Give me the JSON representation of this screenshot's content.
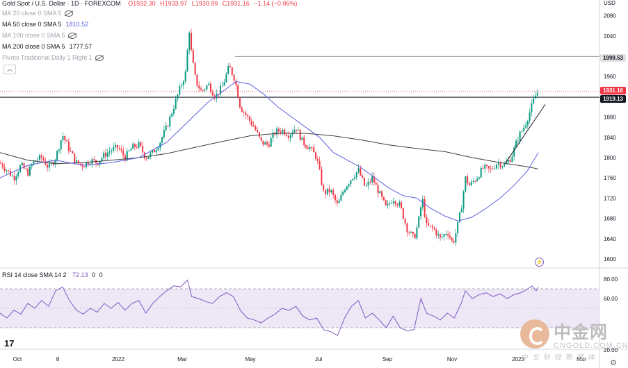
{
  "header": {
    "symbol": "Gold Spot / U.S. Dollar · 1D · FOREXCOM",
    "open": "O1932.30",
    "high": "H1933.97",
    "low": "L1930.99",
    "close": "C1931.16",
    "change": "−1.14 (−0.06%)",
    "currency": "USD"
  },
  "indicators": [
    {
      "label": "MA 20 close 0 SMA 5",
      "value": "",
      "icon": "eye-off-icon"
    },
    {
      "label": "MA 50 close 0 SMA 5",
      "value": "1810.52",
      "icon": ""
    },
    {
      "label": "MA 100 close 0 SMA 5",
      "value": "",
      "icon": "eye-off-icon"
    },
    {
      "label": "MA 200 close 0 SMA 5",
      "value": "1777.57",
      "icon": ""
    },
    {
      "label": "Pivots Traditional Daily 1 Right 1",
      "value": "",
      "icon": "eye-off-icon"
    }
  ],
  "collapse_icon": "chevron-up-icon",
  "price_labels": {
    "level_upper": "1999.53",
    "current": "1931.16",
    "level_lower": "1919.13"
  },
  "rsi": {
    "label": "RSI 14 close SMA 14 2",
    "value": "72.13",
    "v2": "0",
    "v3": "0"
  },
  "watermark": {
    "brand": "中金网",
    "url": "CNGOLD.COM.CN",
    "slogan": "中文财经新媒体"
  },
  "logo": "17",
  "colors": {
    "up": "#089981",
    "down": "#f23645",
    "ma50": "#5b5fe0",
    "ma200": "#3c3c3c",
    "rsi": "#7e57c2",
    "rsi_band": "#ede7f6"
  },
  "chart_data": [
    {
      "type": "candlestick",
      "title": "Gold Spot / U.S. Dollar · 1D · FOREXCOM",
      "x_ticks": [
        "Oct",
        "8",
        "2022",
        "Mar",
        "May",
        "Jul",
        "Sep",
        "Nov",
        "2023",
        "Mar"
      ],
      "y_ticks": [
        2080,
        2040,
        2000,
        1960,
        1920,
        1880,
        1840,
        1800,
        1760,
        1720,
        1680,
        1640,
        1600
      ],
      "ylim": [
        1585,
        2100
      ],
      "close_path": [
        [
          0,
          1790
        ],
        [
          10,
          1775
        ],
        [
          20,
          1760
        ],
        [
          30,
          1785
        ],
        [
          40,
          1770
        ],
        [
          50,
          1795
        ],
        [
          60,
          1800
        ],
        [
          70,
          1780
        ],
        [
          80,
          1800
        ],
        [
          90,
          1845
        ],
        [
          100,
          1815
        ],
        [
          110,
          1790
        ],
        [
          120,
          1785
        ],
        [
          130,
          1795
        ],
        [
          140,
          1790
        ],
        [
          150,
          1805
        ],
        [
          160,
          1815
        ],
        [
          170,
          1820
        ],
        [
          180,
          1800
        ],
        [
          190,
          1820
        ],
        [
          200,
          1825
        ],
        [
          210,
          1800
        ],
        [
          220,
          1810
        ],
        [
          230,
          1830
        ],
        [
          240,
          1860
        ],
        [
          250,
          1900
        ],
        [
          260,
          1940
        ],
        [
          268,
          1970
        ],
        [
          272,
          2060
        ],
        [
          276,
          2000
        ],
        [
          282,
          1950
        ],
        [
          290,
          1930
        ],
        [
          300,
          1945
        ],
        [
          310,
          1920
        ],
        [
          320,
          1940
        ],
        [
          330,
          1980
        ],
        [
          338,
          1955
        ],
        [
          346,
          1900
        ],
        [
          356,
          1880
        ],
        [
          366,
          1860
        ],
        [
          376,
          1830
        ],
        [
          386,
          1825
        ],
        [
          396,
          1850
        ],
        [
          406,
          1855
        ],
        [
          416,
          1845
        ],
        [
          426,
          1860
        ],
        [
          436,
          1830
        ],
        [
          446,
          1820
        ],
        [
          456,
          1800
        ],
        [
          466,
          1730
        ],
        [
          476,
          1735
        ],
        [
          486,
          1705
        ],
        [
          496,
          1740
        ],
        [
          506,
          1760
        ],
        [
          516,
          1775
        ],
        [
          526,
          1740
        ],
        [
          536,
          1760
        ],
        [
          546,
          1730
        ],
        [
          556,
          1700
        ],
        [
          566,
          1720
        ],
        [
          576,
          1705
        ],
        [
          586,
          1660
        ],
        [
          596,
          1640
        ],
        [
          602,
          1670
        ],
        [
          608,
          1720
        ],
        [
          614,
          1665
        ],
        [
          624,
          1660
        ],
        [
          634,
          1640
        ],
        [
          644,
          1655
        ],
        [
          652,
          1630
        ],
        [
          658,
          1660
        ],
        [
          664,
          1700
        ],
        [
          670,
          1760
        ],
        [
          676,
          1745
        ],
        [
          686,
          1760
        ],
        [
          696,
          1780
        ],
        [
          706,
          1775
        ],
        [
          716,
          1790
        ],
        [
          726,
          1785
        ],
        [
          736,
          1800
        ],
        [
          746,
          1840
        ],
        [
          756,
          1865
        ],
        [
          764,
          1895
        ],
        [
          770,
          1920
        ],
        [
          775,
          1931
        ]
      ],
      "ma50": [
        [
          0,
          1760
        ],
        [
          40,
          1785
        ],
        [
          80,
          1795
        ],
        [
          120,
          1785
        ],
        [
          160,
          1790
        ],
        [
          200,
          1800
        ],
        [
          240,
          1830
        ],
        [
          270,
          1870
        ],
        [
          300,
          1910
        ],
        [
          320,
          1930
        ],
        [
          340,
          1950
        ],
        [
          360,
          1945
        ],
        [
          380,
          1925
        ],
        [
          400,
          1900
        ],
        [
          420,
          1880
        ],
        [
          440,
          1860
        ],
        [
          460,
          1840
        ],
        [
          480,
          1810
        ],
        [
          500,
          1795
        ],
        [
          520,
          1780
        ],
        [
          540,
          1760
        ],
        [
          560,
          1740
        ],
        [
          580,
          1725
        ],
        [
          600,
          1720
        ],
        [
          620,
          1700
        ],
        [
          640,
          1685
        ],
        [
          660,
          1675
        ],
        [
          680,
          1683
        ],
        [
          700,
          1700
        ],
        [
          720,
          1720
        ],
        [
          740,
          1745
        ],
        [
          760,
          1775
        ],
        [
          775,
          1810
        ]
      ],
      "ma200": [
        [
          0,
          1810
        ],
        [
          40,
          1795
        ],
        [
          80,
          1788
        ],
        [
          120,
          1790
        ],
        [
          160,
          1795
        ],
        [
          200,
          1800
        ],
        [
          240,
          1808
        ],
        [
          280,
          1820
        ],
        [
          320,
          1832
        ],
        [
          360,
          1843
        ],
        [
          400,
          1848
        ],
        [
          440,
          1848
        ],
        [
          480,
          1843
        ],
        [
          520,
          1835
        ],
        [
          560,
          1825
        ],
        [
          600,
          1818
        ],
        [
          640,
          1812
        ],
        [
          680,
          1800
        ],
        [
          720,
          1790
        ],
        [
          760,
          1782
        ],
        [
          775,
          1777.57
        ]
      ],
      "trendline": [
        [
          728,
          1790
        ],
        [
          785,
          1905
        ]
      ],
      "hlines": [
        {
          "y": 1999.53
        },
        {
          "y": 1919.13
        },
        {
          "y": 1931.16
        }
      ]
    },
    {
      "type": "line",
      "title": "RSI 14 close SMA 14 2",
      "y_ticks": [
        80,
        60,
        20
      ],
      "ylim": [
        10,
        90
      ],
      "band": [
        30,
        70
      ],
      "values": [
        [
          0,
          45
        ],
        [
          10,
          40
        ],
        [
          20,
          48
        ],
        [
          30,
          44
        ],
        [
          40,
          55
        ],
        [
          50,
          50
        ],
        [
          60,
          58
        ],
        [
          70,
          52
        ],
        [
          80,
          68
        ],
        [
          90,
          72
        ],
        [
          100,
          58
        ],
        [
          110,
          48
        ],
        [
          120,
          44
        ],
        [
          130,
          50
        ],
        [
          140,
          46
        ],
        [
          150,
          55
        ],
        [
          160,
          50
        ],
        [
          170,
          56
        ],
        [
          180,
          48
        ],
        [
          190,
          55
        ],
        [
          200,
          58
        ],
        [
          210,
          45
        ],
        [
          220,
          55
        ],
        [
          230,
          62
        ],
        [
          240,
          68
        ],
        [
          250,
          73
        ],
        [
          260,
          72
        ],
        [
          270,
          79
        ],
        [
          276,
          62
        ],
        [
          286,
          60
        ],
        [
          296,
          57
        ],
        [
          306,
          55
        ],
        [
          316,
          62
        ],
        [
          326,
          66
        ],
        [
          336,
          62
        ],
        [
          346,
          48
        ],
        [
          356,
          40
        ],
        [
          366,
          38
        ],
        [
          376,
          35
        ],
        [
          386,
          40
        ],
        [
          396,
          44
        ],
        [
          406,
          50
        ],
        [
          416,
          48
        ],
        [
          426,
          52
        ],
        [
          436,
          42
        ],
        [
          446,
          38
        ],
        [
          456,
          40
        ],
        [
          466,
          28
        ],
        [
          476,
          26
        ],
        [
          486,
          22
        ],
        [
          496,
          40
        ],
        [
          506,
          52
        ],
        [
          516,
          58
        ],
        [
          526,
          40
        ],
        [
          536,
          45
        ],
        [
          546,
          38
        ],
        [
          556,
          30
        ],
        [
          566,
          42
        ],
        [
          576,
          30
        ],
        [
          586,
          27
        ],
        [
          596,
          28
        ],
        [
          606,
          60
        ],
        [
          614,
          45
        ],
        [
          624,
          42
        ],
        [
          634,
          38
        ],
        [
          644,
          45
        ],
        [
          654,
          40
        ],
        [
          664,
          55
        ],
        [
          670,
          68
        ],
        [
          680,
          60
        ],
        [
          690,
          64
        ],
        [
          700,
          66
        ],
        [
          710,
          62
        ],
        [
          720,
          65
        ],
        [
          730,
          60
        ],
        [
          740,
          64
        ],
        [
          750,
          66
        ],
        [
          760,
          70
        ],
        [
          766,
          73
        ],
        [
          772,
          68
        ],
        [
          775,
          72
        ]
      ]
    }
  ]
}
